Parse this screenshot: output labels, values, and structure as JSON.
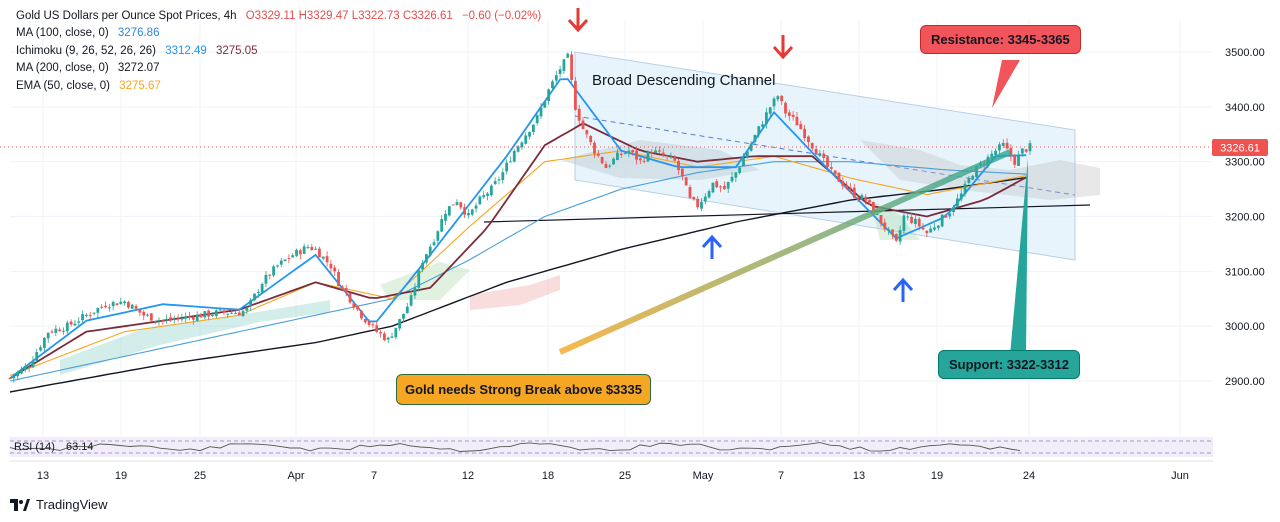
{
  "chart_data": {
    "type": "candlestick",
    "title": "Gold US Dollars per Ounce Spot Prices, 4h",
    "ohlc": {
      "open": "O3329.11",
      "high": "H3329.47",
      "low": "L3322.73",
      "close": "C3326.61",
      "change": "−0.60 (−0.02%)"
    },
    "price_label": "3326.61",
    "ylim": [
      2870,
      3540
    ],
    "y_ticks": [
      {
        "v": 3500,
        "label": "3500.00"
      },
      {
        "v": 3400,
        "label": "3400.00"
      },
      {
        "v": 3300,
        "label": "3300.00"
      },
      {
        "v": 3200,
        "label": "3200.00"
      },
      {
        "v": 3100,
        "label": "3100.00"
      },
      {
        "v": 3000,
        "label": "3000.00"
      },
      {
        "v": 2900,
        "label": "2900.00"
      }
    ],
    "x_ticks": [
      "13",
      "19",
      "25",
      "Apr",
      "7",
      "12",
      "18",
      "25",
      "May",
      "7",
      "13",
      "19",
      "24",
      "Jun"
    ],
    "indicators": [
      {
        "name": "MA (100, close, 0)",
        "value": "3276.86",
        "color": "#2e86de"
      },
      {
        "name": "Ichimoku (9, 26, 52, 26, 26)",
        "value": "3312.49",
        "value2": "3275.05",
        "color": "#2196f3",
        "color2": "#7b2c3a"
      },
      {
        "name": "MA (200, close, 0)",
        "value": "3272.07",
        "color": "#131722"
      },
      {
        "name": "EMA (50, close, 0)",
        "value": "3275.67",
        "color": "#f5a623"
      }
    ],
    "rsi_label": "RSI (14)",
    "rsi_value": "63.14",
    "close_path": [
      [
        0,
        2905
      ],
      [
        5,
        2930
      ],
      [
        10,
        2990
      ],
      [
        15,
        3000
      ],
      [
        20,
        3020
      ],
      [
        25,
        3040
      ],
      [
        30,
        3045
      ],
      [
        35,
        3020
      ],
      [
        40,
        3010
      ],
      [
        45,
        3015
      ],
      [
        50,
        3020
      ],
      [
        55,
        3025
      ],
      [
        60,
        3025
      ],
      [
        62,
        3030
      ],
      [
        66,
        3080
      ],
      [
        70,
        3110
      ],
      [
        74,
        3130
      ],
      [
        78,
        3145
      ],
      [
        80,
        3140
      ],
      [
        84,
        3110
      ],
      [
        86,
        3080
      ],
      [
        88,
        3060
      ],
      [
        92,
        3020
      ],
      [
        96,
        2990
      ],
      [
        99,
        2975
      ],
      [
        102,
        3010
      ],
      [
        105,
        3050
      ],
      [
        108,
        3120
      ],
      [
        111,
        3160
      ],
      [
        114,
        3210
      ],
      [
        117,
        3230
      ],
      [
        120,
        3200
      ],
      [
        123,
        3230
      ],
      [
        126,
        3250
      ],
      [
        129,
        3280
      ],
      [
        132,
        3320
      ],
      [
        135,
        3350
      ],
      [
        138,
        3380
      ],
      [
        141,
        3430
      ],
      [
        144,
        3470
      ],
      [
        146,
        3490
      ],
      [
        148,
        3400
      ],
      [
        150,
        3360
      ],
      [
        153,
        3320
      ],
      [
        156,
        3290
      ],
      [
        159,
        3310
      ],
      [
        162,
        3320
      ],
      [
        165,
        3300
      ],
      [
        168,
        3320
      ],
      [
        171,
        3310
      ],
      [
        174,
        3300
      ],
      [
        176,
        3270
      ],
      [
        178,
        3230
      ],
      [
        180,
        3220
      ],
      [
        182,
        3240
      ],
      [
        184,
        3260
      ],
      [
        187,
        3250
      ],
      [
        190,
        3280
      ],
      [
        193,
        3320
      ],
      [
        196,
        3360
      ],
      [
        199,
        3400
      ],
      [
        201,
        3420
      ],
      [
        203,
        3390
      ],
      [
        206,
        3370
      ],
      [
        209,
        3340
      ],
      [
        212,
        3310
      ],
      [
        215,
        3280
      ],
      [
        218,
        3260
      ],
      [
        221,
        3240
      ],
      [
        224,
        3230
      ],
      [
        227,
        3200
      ],
      [
        230,
        3170
      ],
      [
        232,
        3150
      ],
      [
        234,
        3200
      ],
      [
        237,
        3190
      ],
      [
        240,
        3170
      ],
      [
        243,
        3190
      ],
      [
        246,
        3210
      ],
      [
        249,
        3240
      ],
      [
        252,
        3280
      ],
      [
        255,
        3300
      ],
      [
        258,
        3320
      ],
      [
        260,
        3330
      ],
      [
        263,
        3300
      ],
      [
        265,
        3320
      ],
      [
        267,
        3327
      ]
    ],
    "lines": {
      "ma200": [
        [
          0,
          2880
        ],
        [
          40,
          2930
        ],
        [
          80,
          2970
        ],
        [
          100,
          3000
        ],
        [
          130,
          3080
        ],
        [
          160,
          3140
        ],
        [
          190,
          3190
        ],
        [
          220,
          3230
        ],
        [
          245,
          3250
        ],
        [
          267,
          3272
        ]
      ],
      "ma100": [
        [
          0,
          2900
        ],
        [
          40,
          2960
        ],
        [
          80,
          3020
        ],
        [
          100,
          3050
        ],
        [
          120,
          3120
        ],
        [
          140,
          3200
        ],
        [
          160,
          3250
        ],
        [
          180,
          3280
        ],
        [
          200,
          3300
        ],
        [
          220,
          3300
        ],
        [
          245,
          3285
        ],
        [
          267,
          3277
        ]
      ],
      "ema50": [
        [
          0,
          2910
        ],
        [
          30,
          2990
        ],
        [
          60,
          3020
        ],
        [
          80,
          3080
        ],
        [
          100,
          3050
        ],
        [
          120,
          3180
        ],
        [
          140,
          3300
        ],
        [
          160,
          3320
        ],
        [
          180,
          3290
        ],
        [
          200,
          3310
        ],
        [
          220,
          3270
        ],
        [
          240,
          3240
        ],
        [
          267,
          3276
        ]
      ],
      "tenkan": [
        [
          0,
          2905
        ],
        [
          20,
          3010
        ],
        [
          40,
          3040
        ],
        [
          60,
          3030
        ],
        [
          80,
          3130
        ],
        [
          95,
          3000
        ],
        [
          110,
          3130
        ],
        [
          130,
          3310
        ],
        [
          145,
          3460
        ],
        [
          160,
          3320
        ],
        [
          175,
          3290
        ],
        [
          190,
          3290
        ],
        [
          200,
          3390
        ],
        [
          215,
          3280
        ],
        [
          232,
          3160
        ],
        [
          245,
          3200
        ],
        [
          258,
          3310
        ],
        [
          267,
          3312
        ]
      ],
      "kijun": [
        [
          0,
          2905
        ],
        [
          20,
          2990
        ],
        [
          40,
          3010
        ],
        [
          60,
          3030
        ],
        [
          80,
          3080
        ],
        [
          95,
          3050
        ],
        [
          110,
          3070
        ],
        [
          125,
          3180
        ],
        [
          140,
          3330
        ],
        [
          150,
          3370
        ],
        [
          165,
          3320
        ],
        [
          180,
          3300
        ],
        [
          195,
          3310
        ],
        [
          210,
          3310
        ],
        [
          225,
          3220
        ],
        [
          240,
          3200
        ],
        [
          255,
          3230
        ],
        [
          267,
          3275
        ]
      ]
    }
  },
  "annotations": {
    "channel_label": "Broad Descending Channel",
    "resistance": "Resistance: 3345-3365",
    "support": "Support: 3322-3312",
    "break_note": "Gold needs Strong Break above $3335"
  },
  "colors": {
    "up": "#26a69a",
    "down": "#ef5350",
    "arrow_down": "#e53935",
    "arrow_up": "#2962ff",
    "resistance_bg": "#f2545b",
    "support_bg": "#26a69a",
    "break_bg": "#f5a623"
  },
  "footer": {
    "brand": "TradingView"
  }
}
